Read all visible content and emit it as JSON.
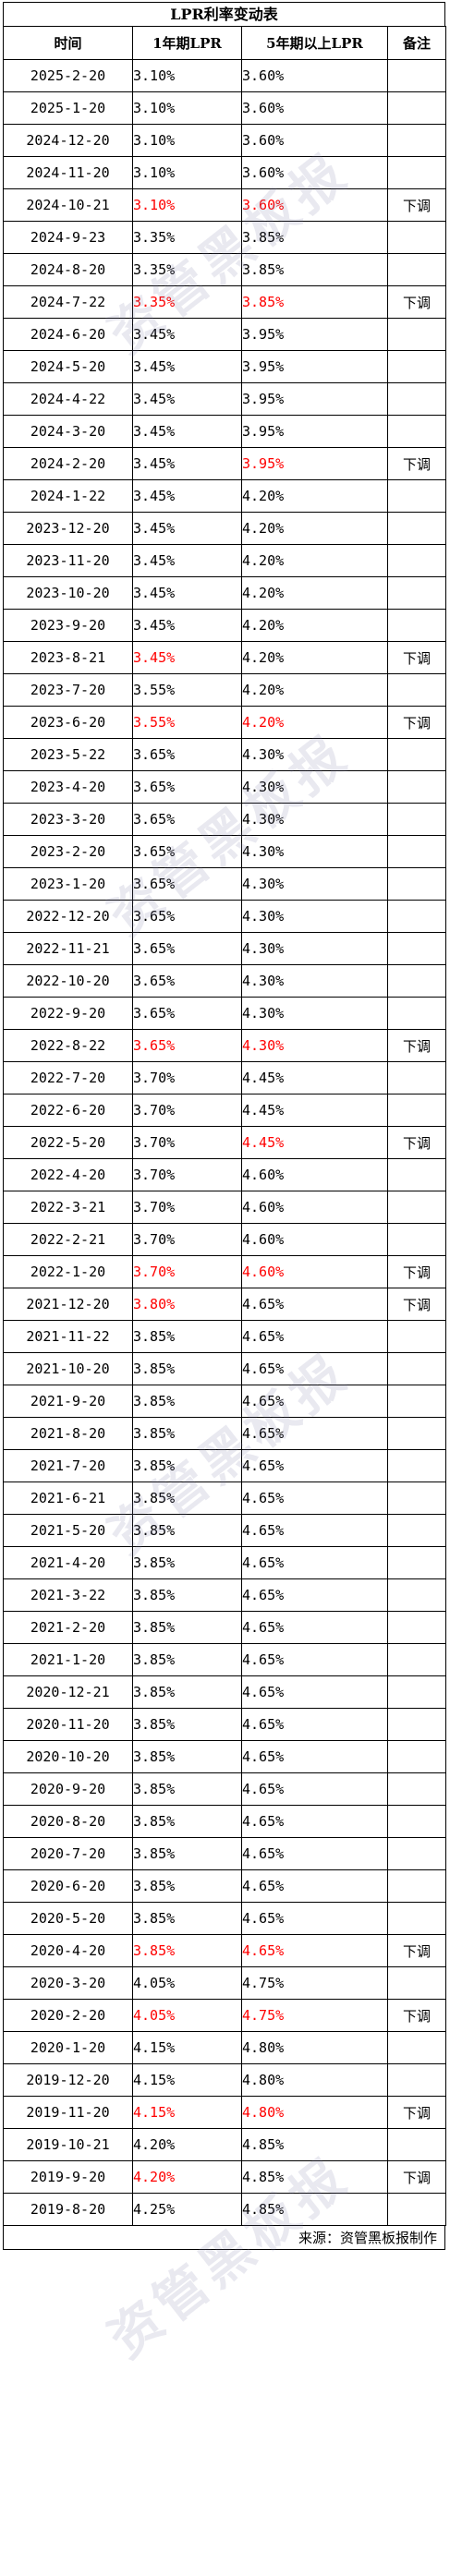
{
  "title": "LPR利率变动表",
  "headers": {
    "date": "时间",
    "one_year": "1年期LPR",
    "five_year": "5年期以上LPR",
    "note": "备注"
  },
  "rows": [
    {
      "date": "2025-2-20",
      "one": "3.10%",
      "five": "3.60%",
      "note": ""
    },
    {
      "date": "2025-1-20",
      "one": "3.10%",
      "five": "3.60%",
      "note": ""
    },
    {
      "date": "2024-12-20",
      "one": "3.10%",
      "five": "3.60%",
      "note": ""
    },
    {
      "date": "2024-11-20",
      "one": "3.10%",
      "five": "3.60%",
      "note": ""
    },
    {
      "date": "2024-10-21",
      "one": "3.10%",
      "five": "3.60%",
      "note": "下调",
      "one_style": "red-bold",
      "five_style": "red-bold"
    },
    {
      "date": "2024-9-23",
      "one": "3.35%",
      "five": "3.85%",
      "note": ""
    },
    {
      "date": "2024-8-20",
      "one": "3.35%",
      "five": "3.85%",
      "note": ""
    },
    {
      "date": "2024-7-22",
      "one": "3.35%",
      "five": "3.85%",
      "note": "下调",
      "one_style": "red-bold",
      "five_style": "red-bold"
    },
    {
      "date": "2024-6-20",
      "one": "3.45%",
      "five": "3.95%",
      "note": ""
    },
    {
      "date": "2024-5-20",
      "one": "3.45%",
      "five": "3.95%",
      "note": ""
    },
    {
      "date": "2024-4-22",
      "one": "3.45%",
      "five": "3.95%",
      "note": ""
    },
    {
      "date": "2024-3-20",
      "one": "3.45%",
      "five": "3.95%",
      "note": ""
    },
    {
      "date": "2024-2-20",
      "one": "3.45%",
      "five": "3.95%",
      "note": "下调",
      "five_style": "red-bold"
    },
    {
      "date": "2024-1-22",
      "one": "3.45%",
      "five": "4.20%",
      "note": ""
    },
    {
      "date": "2023-12-20",
      "one": "3.45%",
      "five": "4.20%",
      "note": ""
    },
    {
      "date": "2023-11-20",
      "one": "3.45%",
      "five": "4.20%",
      "note": ""
    },
    {
      "date": "2023-10-20",
      "one": "3.45%",
      "five": "4.20%",
      "note": ""
    },
    {
      "date": "2023-9-20",
      "one": "3.45%",
      "five": "4.20%",
      "note": ""
    },
    {
      "date": "2023-8-21",
      "one": "3.45%",
      "five": "4.20%",
      "note": "下调",
      "one_style": "red-bold"
    },
    {
      "date": "2023-7-20",
      "one": "3.55%",
      "five": "4.20%",
      "note": ""
    },
    {
      "date": "2023-6-20",
      "one": "3.55%",
      "five": "4.20%",
      "note": "下调",
      "one_style": "red-bold",
      "five_style": "red-bold"
    },
    {
      "date": "2023-5-22",
      "one": "3.65%",
      "five": "4.30%",
      "note": ""
    },
    {
      "date": "2023-4-20",
      "one": "3.65%",
      "five": "4.30%",
      "note": ""
    },
    {
      "date": "2023-3-20",
      "one": "3.65%",
      "five": "4.30%",
      "note": ""
    },
    {
      "date": "2023-2-20",
      "one": "3.65%",
      "five": "4.30%",
      "note": ""
    },
    {
      "date": "2023-1-20",
      "one": "3.65%",
      "five": "4.30%",
      "note": ""
    },
    {
      "date": "2022-12-20",
      "one": "3.65%",
      "five": "4.30%",
      "note": ""
    },
    {
      "date": "2022-11-21",
      "one": "3.65%",
      "five": "4.30%",
      "note": ""
    },
    {
      "date": "2022-10-20",
      "one": "3.65%",
      "five": "4.30%",
      "note": ""
    },
    {
      "date": "2022-9-20",
      "one": "3.65%",
      "five": "4.30%",
      "note": ""
    },
    {
      "date": "2022-8-22",
      "one": "3.65%",
      "five": "4.30%",
      "note": "下调",
      "one_style": "red-bold",
      "five_style": "red-bold"
    },
    {
      "date": "2022-7-20",
      "one": "3.70%",
      "five": "4.45%",
      "note": ""
    },
    {
      "date": "2022-6-20",
      "one": "3.70%",
      "five": "4.45%",
      "note": ""
    },
    {
      "date": "2022-5-20",
      "one": "3.70%",
      "five": "4.45%",
      "note": "下调",
      "five_style": "red"
    },
    {
      "date": "2022-4-20",
      "one": "3.70%",
      "five": "4.60%",
      "note": ""
    },
    {
      "date": "2022-3-21",
      "one": "3.70%",
      "five": "4.60%",
      "note": ""
    },
    {
      "date": "2022-2-21",
      "one": "3.70%",
      "five": "4.60%",
      "note": ""
    },
    {
      "date": "2022-1-20",
      "one": "3.70%",
      "five": "4.60%",
      "note": "下调",
      "one_style": "red-bold",
      "five_style": "red-bold"
    },
    {
      "date": "2021-12-20",
      "one": "3.80%",
      "five": "4.65%",
      "note": "下调",
      "one_style": "red"
    },
    {
      "date": "2021-11-22",
      "one": "3.85%",
      "five": "4.65%",
      "note": ""
    },
    {
      "date": "2021-10-20",
      "one": "3.85%",
      "five": "4.65%",
      "note": ""
    },
    {
      "date": "2021-9-20",
      "one": "3.85%",
      "five": "4.65%",
      "note": ""
    },
    {
      "date": "2021-8-20",
      "one": "3.85%",
      "five": "4.65%",
      "note": ""
    },
    {
      "date": "2021-7-20",
      "one": "3.85%",
      "five": "4.65%",
      "note": ""
    },
    {
      "date": "2021-6-21",
      "one": "3.85%",
      "five": "4.65%",
      "note": ""
    },
    {
      "date": "2021-5-20",
      "one": "3.85%",
      "five": "4.65%",
      "note": ""
    },
    {
      "date": "2021-4-20",
      "one": "3.85%",
      "five": "4.65%",
      "note": ""
    },
    {
      "date": "2021-3-22",
      "one": "3.85%",
      "five": "4.65%",
      "note": ""
    },
    {
      "date": "2021-2-20",
      "one": "3.85%",
      "five": "4.65%",
      "note": ""
    },
    {
      "date": "2021-1-20",
      "one": "3.85%",
      "five": "4.65%",
      "note": ""
    },
    {
      "date": "2020-12-21",
      "one": "3.85%",
      "five": "4.65%",
      "note": ""
    },
    {
      "date": "2020-11-20",
      "one": "3.85%",
      "five": "4.65%",
      "note": ""
    },
    {
      "date": "2020-10-20",
      "one": "3.85%",
      "five": "4.65%",
      "note": ""
    },
    {
      "date": "2020-9-20",
      "one": "3.85%",
      "five": "4.65%",
      "note": ""
    },
    {
      "date": "2020-8-20",
      "one": "3.85%",
      "five": "4.65%",
      "note": ""
    },
    {
      "date": "2020-7-20",
      "one": "3.85%",
      "five": "4.65%",
      "note": ""
    },
    {
      "date": "2020-6-20",
      "one": "3.85%",
      "five": "4.65%",
      "note": ""
    },
    {
      "date": "2020-5-20",
      "one": "3.85%",
      "five": "4.65%",
      "note": ""
    },
    {
      "date": "2020-4-20",
      "one": "3.85%",
      "five": "4.65%",
      "note": "下调",
      "one_style": "red-bold",
      "five_style": "red-bold"
    },
    {
      "date": "2020-3-20",
      "one": "4.05%",
      "five": "4.75%",
      "note": ""
    },
    {
      "date": "2020-2-20",
      "one": "4.05%",
      "five": "4.75%",
      "note": "下调",
      "one_style": "red-bold",
      "five_style": "red-bold"
    },
    {
      "date": "2020-1-20",
      "one": "4.15%",
      "five": "4.80%",
      "note": ""
    },
    {
      "date": "2019-12-20",
      "one": "4.15%",
      "five": "4.80%",
      "note": ""
    },
    {
      "date": "2019-11-20",
      "one": "4.15%",
      "five": "4.80%",
      "note": "下调",
      "one_style": "red-bold",
      "five_style": "red-bold"
    },
    {
      "date": "2019-10-21",
      "one": "4.20%",
      "five": "4.85%",
      "note": ""
    },
    {
      "date": "2019-9-20",
      "one": "4.20%",
      "five": "4.85%",
      "note": "下调",
      "one_style": "red"
    },
    {
      "date": "2019-8-20",
      "one": "4.25%",
      "five": "4.85%",
      "note": ""
    }
  ],
  "footer": "来源：资管黑板报制作",
  "watermark": "资管黑板报",
  "colors": {
    "highlight": "#ff0000",
    "border": "#000000"
  }
}
